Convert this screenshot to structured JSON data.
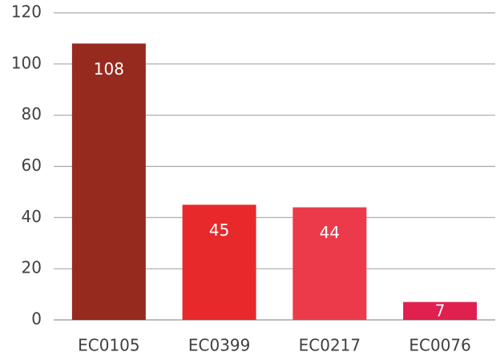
{
  "chart_data": {
    "type": "bar",
    "title": "",
    "xlabel": "",
    "ylabel": "",
    "categories": [
      "EC0105",
      "EC0399",
      "EC0217",
      "EC0076"
    ],
    "values": [
      108,
      45,
      44,
      7
    ],
    "data_labels": [
      "108",
      "45",
      "44",
      "7"
    ],
    "bar_colors": [
      "#962a1f",
      "#e8292b",
      "#ec3a4b",
      "#e0204f"
    ],
    "ylim": [
      0,
      120
    ],
    "yticks": [
      0,
      20,
      40,
      60,
      80,
      100,
      120
    ],
    "ytick_labels": [
      "0",
      "20",
      "40",
      "60",
      "80",
      "100",
      "120"
    ],
    "grid": true,
    "legend": "none"
  }
}
